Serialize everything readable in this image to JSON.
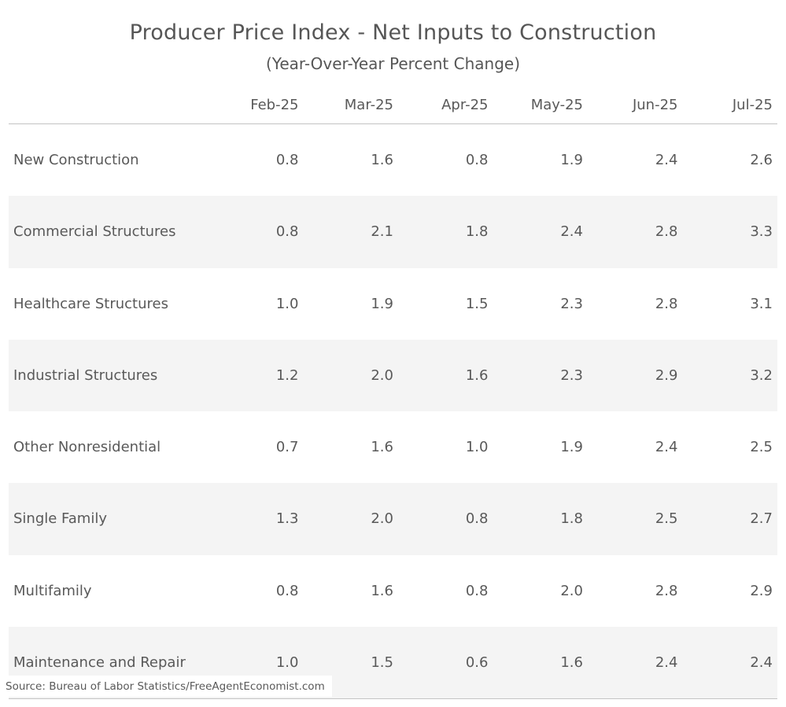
{
  "title": "Producer Price Index - Net Inputs to Construction",
  "subtitle": "(Year-Over-Year Percent Change)",
  "source_note": "Source: Bureau of Labor Statistics/FreeAgentEconomist.com",
  "colors": {
    "text": "#595959",
    "stripe": "#f4f4f4",
    "rule": "#c3c3c3",
    "background": "#ffffff"
  },
  "table": {
    "corner": "",
    "columns": [
      "Feb-25",
      "Mar-25",
      "Apr-25",
      "May-25",
      "Jun-25",
      "Jul-25"
    ],
    "rows": [
      {
        "label": "New Construction",
        "values": [
          "0.8",
          "1.6",
          "0.8",
          "1.9",
          "2.4",
          "2.6"
        ]
      },
      {
        "label": "Commercial Structures",
        "values": [
          "0.8",
          "2.1",
          "1.8",
          "2.4",
          "2.8",
          "3.3"
        ]
      },
      {
        "label": "Healthcare Structures",
        "values": [
          "1.0",
          "1.9",
          "1.5",
          "2.3",
          "2.8",
          "3.1"
        ]
      },
      {
        "label": "Industrial Structures",
        "values": [
          "1.2",
          "2.0",
          "1.6",
          "2.3",
          "2.9",
          "3.2"
        ]
      },
      {
        "label": "Other Nonresidential",
        "values": [
          "0.7",
          "1.6",
          "1.0",
          "1.9",
          "2.4",
          "2.5"
        ]
      },
      {
        "label": "Single Family",
        "values": [
          "1.3",
          "2.0",
          "0.8",
          "1.8",
          "2.5",
          "2.7"
        ]
      },
      {
        "label": "Multifamily",
        "values": [
          "0.8",
          "1.6",
          "0.8",
          "2.0",
          "2.8",
          "2.9"
        ]
      },
      {
        "label": "Maintenance and Repair",
        "values": [
          "1.0",
          "1.5",
          "0.6",
          "1.6",
          "2.4",
          "2.4"
        ]
      }
    ]
  },
  "chart_data": {
    "type": "table",
    "title": "Producer Price Index - Net Inputs to Construction",
    "subtitle": "(Year-Over-Year Percent Change)",
    "categories": [
      "Feb-25",
      "Mar-25",
      "Apr-25",
      "May-25",
      "Jun-25",
      "Jul-25"
    ],
    "series": [
      {
        "name": "New Construction",
        "values": [
          0.8,
          1.6,
          0.8,
          1.9,
          2.4,
          2.6
        ]
      },
      {
        "name": "Commercial Structures",
        "values": [
          0.8,
          2.1,
          1.8,
          2.4,
          2.8,
          3.3
        ]
      },
      {
        "name": "Healthcare Structures",
        "values": [
          1.0,
          1.9,
          1.5,
          2.3,
          2.8,
          3.1
        ]
      },
      {
        "name": "Industrial Structures",
        "values": [
          1.2,
          2.0,
          1.6,
          2.3,
          2.9,
          3.2
        ]
      },
      {
        "name": "Other Nonresidential",
        "values": [
          0.7,
          1.6,
          1.0,
          1.9,
          2.4,
          2.5
        ]
      },
      {
        "name": "Single Family",
        "values": [
          1.3,
          2.0,
          0.8,
          1.8,
          2.5,
          2.7
        ]
      },
      {
        "name": "Multifamily",
        "values": [
          0.8,
          1.6,
          0.8,
          2.0,
          2.8,
          2.9
        ]
      },
      {
        "name": "Maintenance and Repair",
        "values": [
          1.0,
          1.5,
          0.6,
          1.6,
          2.4,
          2.4
        ]
      }
    ],
    "source": "Bureau of Labor Statistics/FreeAgentEconomist.com",
    "layout": {
      "zebra_striping": true,
      "first_row_background": "white",
      "grid": "horizontal-rules-top-bottom-only"
    }
  }
}
